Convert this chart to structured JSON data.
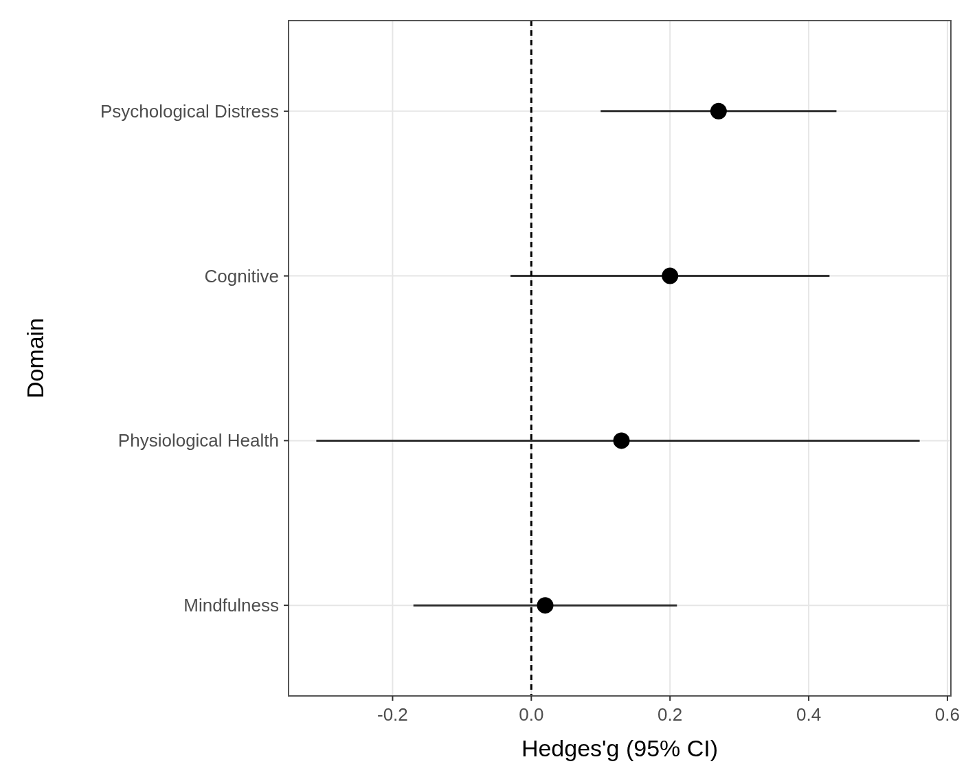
{
  "chart_data": {
    "type": "scatter",
    "orientation": "horizontal",
    "xlabel": "Hedges'g (95% CI)",
    "ylabel": "Domain",
    "categories": [
      "Psychological Distress",
      "Cognitive",
      "Physiological Health",
      "Mindfulness"
    ],
    "series": [
      {
        "color": "#000000",
        "values": [
          0.27,
          0.2,
          0.13,
          0.02
        ],
        "errors": [
          [
            0.1,
            0.44
          ],
          [
            -0.03,
            0.43
          ],
          [
            -0.31,
            0.56
          ],
          [
            -0.17,
            0.21
          ]
        ]
      }
    ],
    "xlim": [
      -0.35,
      0.605
    ],
    "xticks": [
      -0.2,
      {
        "value": 0,
        "label": "0.0"
      },
      0.2,
      0.4,
      0.6
    ],
    "ref_lines": [
      {
        "axis": "x",
        "value": 0,
        "color": "#000000",
        "line_style": "dashed"
      }
    ],
    "grid": true,
    "marker": "circle"
  }
}
